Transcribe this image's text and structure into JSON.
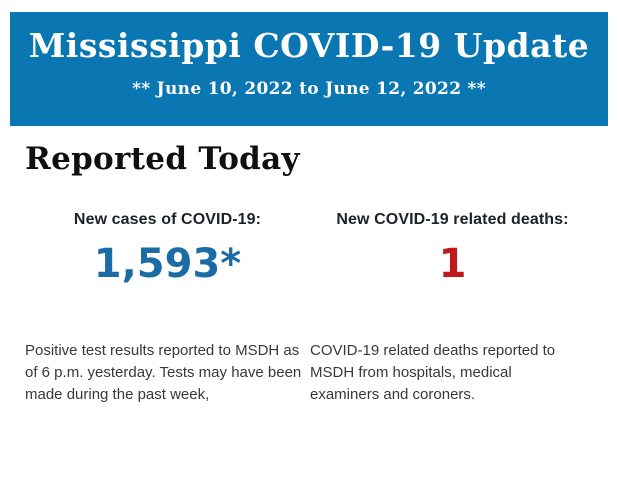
{
  "header": {
    "title": "Mississippi COVID-19 Update",
    "subtitle": "** June 10, 2022 to June 12, 2022 **",
    "background_color": "#0a76b2",
    "text_color": "#ffffff"
  },
  "main": {
    "heading": "Reported Today",
    "stats": [
      {
        "label": "New cases of COVID-19:",
        "value": "1,593*",
        "value_color": "#1b6ba5",
        "note": "Positive test results reported to MSDH as of 6 p.m. yesterday. Tests may have been made during the past week,"
      },
      {
        "label": "New COVID-19 related deaths:",
        "value": "1",
        "value_color": "#c1181e",
        "note": "COVID-19 related deaths reported to MSDH from hospitals, medical examiners and coroners."
      }
    ]
  }
}
